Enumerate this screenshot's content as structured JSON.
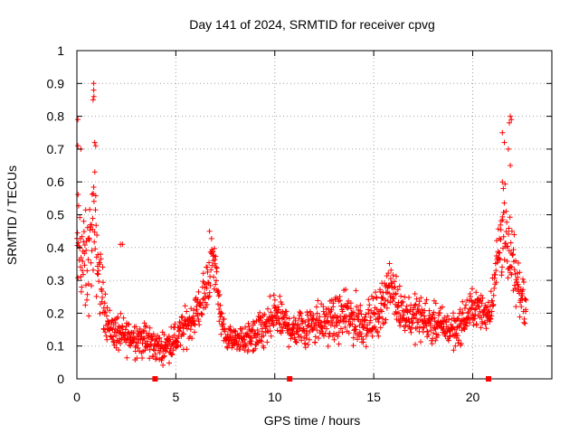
{
  "chart_data": {
    "type": "scatter",
    "title": "Day 141 of 2024, SRMTID for receiver cpvg",
    "xlabel": "GPS time / hours",
    "ylabel": "SRMTID / TECUs",
    "xlim": [
      0,
      24
    ],
    "ylim": [
      0,
      1
    ],
    "x_ticks": [
      0,
      5,
      10,
      15,
      20
    ],
    "x_tick_labels": [
      "0",
      "5",
      "10",
      "15",
      "20"
    ],
    "y_ticks": [
      0,
      0.1,
      0.2,
      0.3,
      0.4,
      0.5,
      0.6,
      0.7,
      0.8,
      0.9,
      1
    ],
    "y_tick_labels": [
      "0",
      "0.1",
      "0.2",
      "0.3",
      "0.4",
      "0.5",
      "0.6",
      "0.7",
      "0.8",
      "0.9",
      "1"
    ],
    "grid": true,
    "marker": "+",
    "color": "#ff0000",
    "marker_points_x": [
      3.95,
      10.75,
      20.8
    ],
    "envelope": {
      "x": [
        0.0,
        0.1,
        0.3,
        0.5,
        0.75,
        0.9,
        1.1,
        1.3,
        1.6,
        2.0,
        2.3,
        2.8,
        3.3,
        3.7,
        4.0,
        4.3,
        4.7,
        5.0,
        5.4,
        5.8,
        6.1,
        6.4,
        6.6,
        6.8,
        7.0,
        7.2,
        7.5,
        8.0,
        8.5,
        9.0,
        9.5,
        9.8,
        10.0,
        10.3,
        10.7,
        11.0,
        11.5,
        12.0,
        12.5,
        13.0,
        13.5,
        14.0,
        14.5,
        15.0,
        15.3,
        15.6,
        15.8,
        16.1,
        16.5,
        17.0,
        17.5,
        18.0,
        18.5,
        19.0,
        19.5,
        20.0,
        20.3,
        20.6,
        20.9,
        21.1,
        21.3,
        21.5,
        21.7,
        21.9,
        22.1,
        22.3,
        22.5,
        22.7
      ],
      "center": [
        0.36,
        0.42,
        0.36,
        0.33,
        0.44,
        0.46,
        0.33,
        0.25,
        0.16,
        0.14,
        0.13,
        0.13,
        0.12,
        0.11,
        0.1,
        0.09,
        0.11,
        0.12,
        0.15,
        0.18,
        0.21,
        0.24,
        0.3,
        0.36,
        0.34,
        0.22,
        0.13,
        0.12,
        0.12,
        0.13,
        0.15,
        0.17,
        0.2,
        0.18,
        0.16,
        0.15,
        0.16,
        0.18,
        0.17,
        0.18,
        0.19,
        0.18,
        0.17,
        0.18,
        0.21,
        0.26,
        0.28,
        0.25,
        0.2,
        0.19,
        0.18,
        0.17,
        0.16,
        0.15,
        0.17,
        0.22,
        0.21,
        0.2,
        0.21,
        0.3,
        0.38,
        0.48,
        0.4,
        0.36,
        0.32,
        0.28,
        0.26,
        0.22
      ],
      "spread": [
        0.14,
        0.16,
        0.15,
        0.14,
        0.16,
        0.16,
        0.1,
        0.08,
        0.05,
        0.05,
        0.05,
        0.05,
        0.05,
        0.05,
        0.04,
        0.04,
        0.04,
        0.05,
        0.05,
        0.05,
        0.05,
        0.06,
        0.08,
        0.07,
        0.07,
        0.05,
        0.03,
        0.03,
        0.04,
        0.05,
        0.06,
        0.06,
        0.06,
        0.05,
        0.05,
        0.05,
        0.06,
        0.07,
        0.05,
        0.06,
        0.06,
        0.07,
        0.06,
        0.06,
        0.06,
        0.07,
        0.06,
        0.06,
        0.05,
        0.06,
        0.06,
        0.05,
        0.05,
        0.05,
        0.05,
        0.05,
        0.05,
        0.04,
        0.05,
        0.06,
        0.1,
        0.14,
        0.12,
        0.1,
        0.09,
        0.07,
        0.06,
        0.05
      ]
    },
    "outliers": [
      {
        "x": 0.85,
        "y": 0.9
      },
      {
        "x": 0.85,
        "y": 0.88
      },
      {
        "x": 0.82,
        "y": 0.85
      },
      {
        "x": 0.86,
        "y": 0.86
      },
      {
        "x": 0.9,
        "y": 0.72
      },
      {
        "x": 0.95,
        "y": 0.71
      },
      {
        "x": 0.2,
        "y": 0.7
      },
      {
        "x": 0.05,
        "y": 0.71
      },
      {
        "x": 0.05,
        "y": 0.79
      },
      {
        "x": 2.2,
        "y": 0.41
      },
      {
        "x": 2.3,
        "y": 0.41
      },
      {
        "x": 6.7,
        "y": 0.45
      },
      {
        "x": 21.5,
        "y": 0.75
      },
      {
        "x": 21.6,
        "y": 0.72
      },
      {
        "x": 21.9,
        "y": 0.8
      },
      {
        "x": 21.95,
        "y": 0.79
      },
      {
        "x": 21.85,
        "y": 0.78
      },
      {
        "x": 21.8,
        "y": 0.7
      },
      {
        "x": 21.5,
        "y": 0.6
      },
      {
        "x": 21.55,
        "y": 0.58
      },
      {
        "x": 21.9,
        "y": 0.65
      }
    ]
  }
}
